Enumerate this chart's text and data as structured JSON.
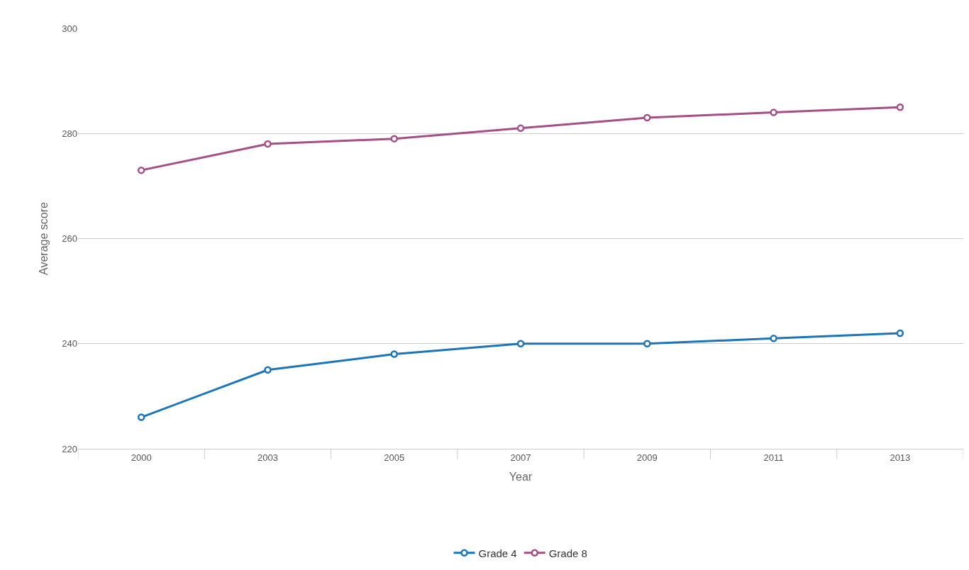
{
  "chart_data": {
    "type": "line",
    "xlabel": "Year",
    "ylabel": "Average score",
    "categories": [
      "2000",
      "2003",
      "2005",
      "2007",
      "2009",
      "2011",
      "2013"
    ],
    "series": [
      {
        "name": "Grade 4",
        "color": "#1b75bb",
        "values": [
          226,
          235,
          238,
          240,
          240,
          241,
          242
        ]
      },
      {
        "name": "Grade 8",
        "color": "#a64f86",
        "values": [
          273,
          278,
          279,
          281,
          283,
          284,
          285
        ]
      }
    ],
    "ylim": [
      220,
      300
    ],
    "yticks": [
      220,
      240,
      260,
      280,
      300
    ],
    "grid": "y",
    "legend": "bottom",
    "marker": "circle",
    "line_style": "solid"
  }
}
